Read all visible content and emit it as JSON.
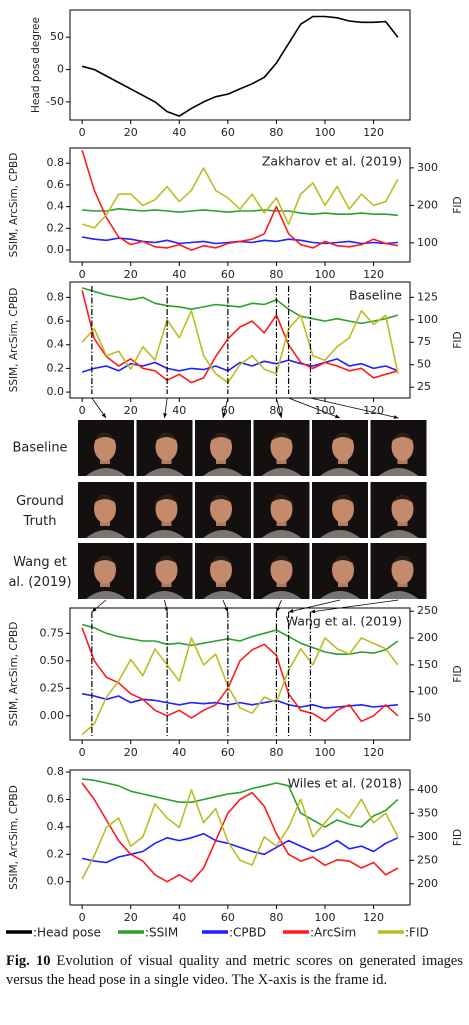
{
  "chart_data": [
    {
      "type": "line",
      "ylabel": "Head pose degree",
      "x": [
        0,
        5,
        10,
        15,
        20,
        25,
        30,
        35,
        40,
        45,
        50,
        55,
        60,
        65,
        70,
        75,
        80,
        85,
        90,
        95,
        100,
        105,
        110,
        115,
        120,
        125,
        130
      ],
      "xlim": [
        -5,
        135
      ],
      "xticks": [
        0,
        20,
        40,
        60,
        80,
        100,
        120
      ],
      "ylim": [
        -78,
        92
      ],
      "yticks": [
        -50,
        0,
        50
      ],
      "series": [
        {
          "name": "Head pose",
          "color": "#000000",
          "values": [
            5,
            0,
            -10,
            -20,
            -30,
            -40,
            -50,
            -65,
            -72,
            -60,
            -50,
            -42,
            -38,
            -30,
            -22,
            -12,
            10,
            40,
            70,
            82,
            82,
            80,
            75,
            73,
            73,
            74,
            50
          ]
        }
      ]
    },
    {
      "type": "line",
      "title": "Zakharov et al. (2019)",
      "ylabel": "SSIM, ArcSim, CPBD",
      "y2label": "FID",
      "x": [
        0,
        5,
        10,
        15,
        20,
        25,
        30,
        35,
        40,
        45,
        50,
        55,
        60,
        65,
        70,
        75,
        80,
        85,
        90,
        95,
        100,
        105,
        110,
        115,
        120,
        125,
        130
      ],
      "xlim": [
        -5,
        135
      ],
      "xticks": [
        0,
        20,
        40,
        60,
        80,
        100,
        120
      ],
      "ylim": [
        -0.11,
        0.94
      ],
      "yticks": [
        {
          "value": 0,
          "label": "0.0"
        },
        0.2,
        0.4,
        0.6,
        0.8
      ],
      "y2lim": [
        49,
        353
      ],
      "y2ticks": [
        100,
        200,
        300
      ],
      "series": [
        {
          "name": "SSIM",
          "color": "#2ca02c",
          "values": [
            0.37,
            0.36,
            0.36,
            0.38,
            0.37,
            0.36,
            0.37,
            0.36,
            0.35,
            0.36,
            0.37,
            0.36,
            0.35,
            0.36,
            0.36,
            0.37,
            0.36,
            0.36,
            0.34,
            0.33,
            0.34,
            0.33,
            0.33,
            0.34,
            0.33,
            0.33,
            0.32
          ]
        },
        {
          "name": "CPBD",
          "color": "#1f1fff",
          "values": [
            0.12,
            0.1,
            0.09,
            0.11,
            0.1,
            0.08,
            0.07,
            0.09,
            0.06,
            0.07,
            0.08,
            0.06,
            0.07,
            0.08,
            0.07,
            0.09,
            0.08,
            0.1,
            0.09,
            0.07,
            0.06,
            0.07,
            0.08,
            0.06,
            0.07,
            0.06,
            0.07
          ]
        },
        {
          "name": "ArcSim",
          "color": "#ff1a1a",
          "values": [
            0.92,
            0.55,
            0.3,
            0.12,
            0.05,
            0.08,
            0.03,
            0.02,
            0.05,
            0.0,
            0.04,
            0.02,
            0.06,
            0.08,
            0.1,
            0.15,
            0.4,
            0.15,
            0.05,
            0.02,
            0.08,
            0.04,
            0.03,
            0.05,
            0.1,
            0.06,
            0.04
          ]
        },
        {
          "name": "FID",
          "color": "#bcbd22",
          "axis": "y2",
          "values": [
            150,
            140,
            175,
            230,
            230,
            200,
            215,
            250,
            210,
            240,
            300,
            240,
            220,
            190,
            230,
            180,
            220,
            150,
            230,
            260,
            200,
            250,
            190,
            230,
            200,
            210,
            270
          ]
        }
      ]
    },
    {
      "type": "line",
      "title": "Baseline",
      "ylabel": "SSIM, ArcSim, CPBD",
      "y2label": "FID",
      "x": [
        0,
        5,
        10,
        15,
        20,
        25,
        30,
        35,
        40,
        45,
        50,
        55,
        60,
        65,
        70,
        75,
        80,
        85,
        90,
        95,
        100,
        105,
        110,
        115,
        120,
        125,
        130
      ],
      "xlim": [
        -5,
        135
      ],
      "xticks": [
        0,
        20,
        40,
        60,
        80,
        100,
        120
      ],
      "ylim": [
        -0.05,
        0.93
      ],
      "yticks": [
        {
          "value": 0,
          "label": "0.0"
        },
        0.2,
        0.4,
        0.6,
        0.8
      ],
      "y2lim": [
        13,
        142
      ],
      "y2ticks": [
        25,
        50,
        75,
        100,
        125
      ],
      "frame_markers": [
        4,
        35,
        60,
        80,
        85,
        94
      ],
      "series": [
        {
          "name": "SSIM",
          "color": "#2ca02c",
          "values": [
            0.88,
            0.85,
            0.82,
            0.8,
            0.78,
            0.8,
            0.75,
            0.73,
            0.72,
            0.7,
            0.72,
            0.74,
            0.73,
            0.72,
            0.75,
            0.74,
            0.78,
            0.7,
            0.64,
            0.62,
            0.6,
            0.62,
            0.6,
            0.58,
            0.6,
            0.62,
            0.65
          ]
        },
        {
          "name": "CPBD",
          "color": "#1f1fff",
          "values": [
            0.17,
            0.2,
            0.22,
            0.18,
            0.24,
            0.22,
            0.25,
            0.2,
            0.18,
            0.2,
            0.19,
            0.22,
            0.18,
            0.25,
            0.22,
            0.26,
            0.24,
            0.27,
            0.24,
            0.22,
            0.25,
            0.28,
            0.22,
            0.24,
            0.2,
            0.22,
            0.18
          ]
        },
        {
          "name": "ArcSim",
          "color": "#ff1a1a",
          "values": [
            0.86,
            0.45,
            0.3,
            0.22,
            0.28,
            0.2,
            0.18,
            0.1,
            0.15,
            0.08,
            0.12,
            0.3,
            0.45,
            0.55,
            0.6,
            0.5,
            0.65,
            0.4,
            0.25,
            0.2,
            0.25,
            0.22,
            0.18,
            0.2,
            0.12,
            0.15,
            0.18
          ]
        },
        {
          "name": "FID",
          "color": "#bcbd22",
          "axis": "y2",
          "values": [
            75,
            90,
            60,
            65,
            45,
            70,
            55,
            100,
            80,
            110,
            60,
            40,
            30,
            50,
            60,
            45,
            40,
            90,
            105,
            60,
            55,
            70,
            80,
            110,
            95,
            105,
            40
          ]
        }
      ]
    },
    {
      "type": "line",
      "title": "Wang et al. (2019)",
      "ylabel": "SSIM, ArcSim, CPBD",
      "y2label": "FID",
      "x": [
        0,
        5,
        10,
        15,
        20,
        25,
        30,
        35,
        40,
        45,
        50,
        55,
        60,
        65,
        70,
        75,
        80,
        85,
        90,
        95,
        100,
        105,
        110,
        115,
        120,
        125,
        130
      ],
      "xlim": [
        -5,
        135
      ],
      "xticks": [
        0,
        20,
        40,
        60,
        80,
        100,
        120
      ],
      "ylim": [
        -0.22,
        0.98
      ],
      "yticks": [
        {
          "value": 0,
          "label": "0.00"
        },
        0.25,
        {
          "value": 0.5,
          "label": "0.50"
        },
        0.75
      ],
      "y2lim": [
        10,
        256
      ],
      "y2ticks": [
        50,
        100,
        150,
        200,
        250
      ],
      "frame_markers": [
        4,
        35,
        60,
        80,
        85,
        94
      ],
      "series": [
        {
          "name": "SSIM",
          "color": "#2ca02c",
          "values": [
            0.83,
            0.8,
            0.75,
            0.72,
            0.7,
            0.68,
            0.68,
            0.65,
            0.66,
            0.64,
            0.66,
            0.68,
            0.7,
            0.68,
            0.72,
            0.75,
            0.78,
            0.72,
            0.66,
            0.62,
            0.58,
            0.56,
            0.56,
            0.58,
            0.57,
            0.6,
            0.68
          ]
        },
        {
          "name": "CPBD",
          "color": "#1f1fff",
          "values": [
            0.2,
            0.18,
            0.15,
            0.18,
            0.12,
            0.15,
            0.14,
            0.12,
            0.1,
            0.12,
            0.11,
            0.12,
            0.1,
            0.12,
            0.1,
            0.12,
            0.14,
            0.1,
            0.08,
            0.1,
            0.07,
            0.08,
            0.09,
            0.1,
            0.08,
            0.09,
            0.1
          ]
        },
        {
          "name": "ArcSim",
          "color": "#ff1a1a",
          "values": [
            0.8,
            0.5,
            0.35,
            0.3,
            0.2,
            0.15,
            0.05,
            0.0,
            0.05,
            -0.02,
            0.05,
            0.1,
            0.25,
            0.5,
            0.6,
            0.65,
            0.55,
            0.2,
            0.05,
            0.02,
            -0.05,
            0.05,
            0.1,
            -0.05,
            0.0,
            0.1,
            0.0
          ]
        },
        {
          "name": "FID",
          "color": "#bcbd22",
          "axis": "y2",
          "values": [
            20,
            40,
            90,
            120,
            160,
            130,
            180,
            150,
            120,
            200,
            150,
            170,
            110,
            70,
            60,
            90,
            80,
            140,
            180,
            150,
            200,
            180,
            170,
            200,
            190,
            180,
            150
          ]
        }
      ]
    },
    {
      "type": "line",
      "title": "Wiles et al. (2018)",
      "ylabel": "SSIM, ArcSim, CPBD",
      "y2label": "FID",
      "x": [
        0,
        5,
        10,
        15,
        20,
        25,
        30,
        35,
        40,
        45,
        50,
        55,
        60,
        65,
        70,
        75,
        80,
        85,
        90,
        95,
        100,
        105,
        110,
        115,
        120,
        125,
        130
      ],
      "xlim": [
        -5,
        135
      ],
      "xticks": [
        0,
        20,
        40,
        60,
        80,
        100,
        120
      ],
      "ylim": [
        -0.17,
        0.815
      ],
      "yticks": [
        {
          "value": 0,
          "label": "0.0"
        },
        0.2,
        0.4,
        0.6,
        0.8
      ],
      "y2lim": [
        155,
        442
      ],
      "y2ticks": [
        200,
        250,
        300,
        350,
        400
      ],
      "series": [
        {
          "name": "SSIM",
          "color": "#2ca02c",
          "values": [
            0.75,
            0.74,
            0.72,
            0.7,
            0.66,
            0.64,
            0.62,
            0.6,
            0.58,
            0.58,
            0.6,
            0.62,
            0.64,
            0.65,
            0.68,
            0.7,
            0.72,
            0.7,
            0.5,
            0.45,
            0.4,
            0.45,
            0.42,
            0.4,
            0.48,
            0.52,
            0.6
          ]
        },
        {
          "name": "CPBD",
          "color": "#1f1fff",
          "values": [
            0.17,
            0.15,
            0.14,
            0.18,
            0.2,
            0.22,
            0.28,
            0.32,
            0.3,
            0.32,
            0.35,
            0.3,
            0.28,
            0.25,
            0.22,
            0.2,
            0.25,
            0.3,
            0.26,
            0.22,
            0.25,
            0.3,
            0.24,
            0.26,
            0.22,
            0.28,
            0.32
          ]
        },
        {
          "name": "ArcSim",
          "color": "#ff1a1a",
          "values": [
            0.72,
            0.6,
            0.45,
            0.3,
            0.2,
            0.15,
            0.05,
            0.0,
            0.05,
            0.0,
            0.1,
            0.3,
            0.5,
            0.6,
            0.65,
            0.55,
            0.35,
            0.2,
            0.15,
            0.18,
            0.12,
            0.16,
            0.15,
            0.1,
            0.14,
            0.05,
            0.1
          ]
        },
        {
          "name": "FID",
          "color": "#bcbd22",
          "axis": "y2",
          "values": [
            210,
            260,
            320,
            340,
            280,
            300,
            370,
            340,
            320,
            400,
            330,
            360,
            290,
            250,
            240,
            300,
            280,
            320,
            380,
            300,
            330,
            360,
            340,
            380,
            330,
            350,
            300
          ]
        }
      ]
    }
  ],
  "image_grid": {
    "row_labels": [
      "Baseline",
      "Ground Truth",
      "Wang et al. (2019)"
    ]
  },
  "legend": [
    {
      "name": ":Head pose",
      "color": "#000000"
    },
    {
      "name": ":SSIM",
      "color": "#2ca02c"
    },
    {
      "name": ":CPBD",
      "color": "#1f1fff"
    },
    {
      "name": ":ArcSim",
      "color": "#ff1a1a"
    },
    {
      "name": ":FID",
      "color": "#bcbd22"
    }
  ],
  "caption": {
    "label": "Fig. 10",
    "text": "Evolution of visual quality and metric scores on generated images versus the head pose in a single video. The X-axis is the frame id."
  }
}
